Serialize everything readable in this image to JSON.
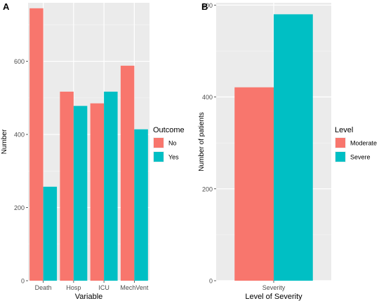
{
  "chart_data": [
    {
      "panel_label": "A",
      "type": "bar",
      "categories": [
        "Death",
        "Hosp",
        "ICU",
        "MechVent"
      ],
      "series": [
        {
          "name": "No",
          "values": [
            745,
            517,
            485,
            588
          ],
          "color": "#F8766D"
        },
        {
          "name": "Yes",
          "values": [
            257,
            478,
            517,
            414
          ],
          "color": "#00BFC4"
        }
      ],
      "xlabel": "Variable",
      "ylabel": "Number",
      "ylim": [
        0,
        760
      ],
      "yticks": [
        0,
        200,
        400,
        600
      ],
      "legend": {
        "title": "Outcome",
        "position": "right"
      },
      "grid": true,
      "panel_background": "#EBEBEB"
    },
    {
      "panel_label": "B",
      "type": "bar",
      "categories": [
        "Severity"
      ],
      "series": [
        {
          "name": "Moderate",
          "values": [
            421
          ],
          "color": "#F8766D"
        },
        {
          "name": "Severe",
          "values": [
            580
          ],
          "color": "#00BFC4"
        }
      ],
      "xlabel": "Level of Severity",
      "ylabel": "Number of patients",
      "ylim": [
        0,
        605
      ],
      "yticks": [
        0,
        200,
        400,
        600
      ],
      "legend": {
        "title": "Level",
        "position": "right"
      },
      "grid": true,
      "panel_background": "#EBEBEB"
    }
  ]
}
